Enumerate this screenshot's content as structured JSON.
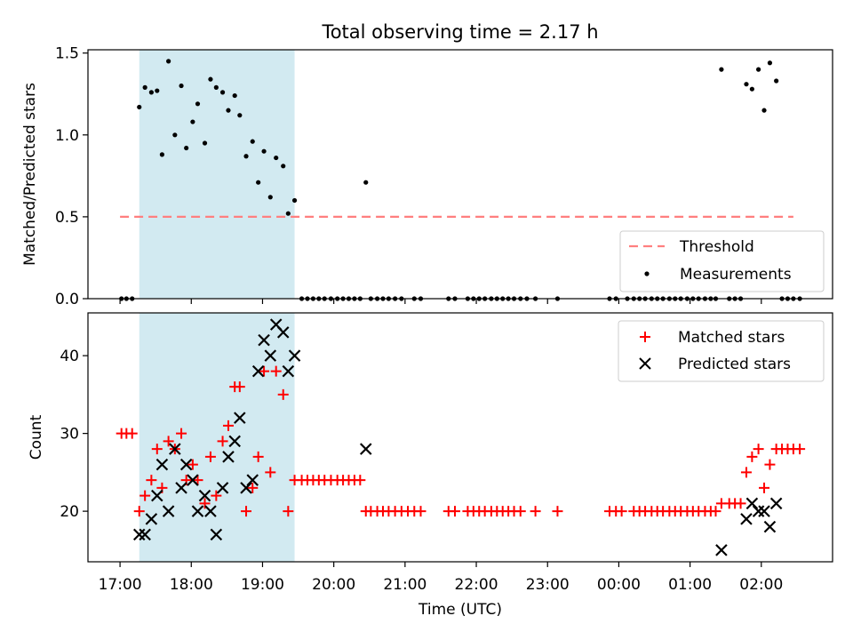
{
  "figure": {
    "title": "Total observing time = 2.17 h",
    "xlabel": "Time (UTC)",
    "x_ticks": [
      "17:00",
      "18:00",
      "19:00",
      "20:00",
      "21:00",
      "22:00",
      "23:00",
      "00:00",
      "01:00",
      "02:00"
    ],
    "x_tick_hours": [
      17,
      18,
      19,
      20,
      21,
      22,
      23,
      24,
      25,
      26
    ],
    "xlim": [
      16.55,
      27.0
    ],
    "shaded_interval_hours": [
      17.27,
      19.45
    ],
    "colors": {
      "shade": "#add8e6",
      "threshold": "#ff7f7f",
      "matched": "#ff0000",
      "predicted": "#000000",
      "measurement": "#000000"
    }
  },
  "chart_data": [
    {
      "type": "scatter",
      "ylabel": "Matched/Predicted stars",
      "ylim": [
        0,
        1.52
      ],
      "y_ticks": [
        "0.0",
        "0.5",
        "1.0",
        "1.5"
      ],
      "y_tick_values": [
        0,
        0.5,
        1.0,
        1.5
      ],
      "threshold": {
        "name": "Threshold",
        "value": 0.5,
        "x_range": [
          17.0,
          26.45
        ]
      },
      "legend": {
        "placement": "lower right",
        "entries": [
          "Threshold",
          "Measurements"
        ]
      },
      "series": [
        {
          "name": "Measurements",
          "points": [
            [
              17.02,
              0
            ],
            [
              17.09,
              0
            ],
            [
              17.17,
              0
            ],
            [
              17.27,
              1.17
            ],
            [
              17.35,
              1.29
            ],
            [
              17.44,
              1.26
            ],
            [
              17.52,
              1.27
            ],
            [
              17.59,
              0.88
            ],
            [
              17.68,
              1.45
            ],
            [
              17.77,
              1.0
            ],
            [
              17.86,
              1.3
            ],
            [
              17.93,
              0.92
            ],
            [
              18.02,
              1.08
            ],
            [
              18.09,
              1.19
            ],
            [
              18.19,
              0.95
            ],
            [
              18.27,
              1.34
            ],
            [
              18.35,
              1.29
            ],
            [
              18.44,
              1.26
            ],
            [
              18.52,
              1.15
            ],
            [
              18.61,
              1.24
            ],
            [
              18.68,
              1.12
            ],
            [
              18.77,
              0.87
            ],
            [
              18.86,
              0.96
            ],
            [
              18.94,
              0.71
            ],
            [
              19.02,
              0.9
            ],
            [
              19.11,
              0.62
            ],
            [
              19.19,
              0.86
            ],
            [
              19.29,
              0.81
            ],
            [
              19.36,
              0.52
            ],
            [
              19.45,
              0.6
            ],
            [
              19.55,
              0
            ],
            [
              19.63,
              0
            ],
            [
              19.71,
              0
            ],
            [
              19.79,
              0
            ],
            [
              19.87,
              0
            ],
            [
              19.96,
              0
            ],
            [
              20.05,
              0
            ],
            [
              20.13,
              0
            ],
            [
              20.21,
              0
            ],
            [
              20.29,
              0
            ],
            [
              20.37,
              0
            ],
            [
              20.45,
              0.71
            ],
            [
              20.52,
              0
            ],
            [
              20.61,
              0
            ],
            [
              20.69,
              0
            ],
            [
              20.77,
              0
            ],
            [
              20.86,
              0
            ],
            [
              20.95,
              0
            ],
            [
              21.13,
              0
            ],
            [
              21.22,
              0
            ],
            [
              21.61,
              0
            ],
            [
              21.7,
              0
            ],
            [
              21.88,
              0
            ],
            [
              21.96,
              0
            ],
            [
              22.04,
              0
            ],
            [
              22.12,
              0
            ],
            [
              22.21,
              0
            ],
            [
              22.29,
              0
            ],
            [
              22.37,
              0
            ],
            [
              22.45,
              0
            ],
            [
              22.53,
              0
            ],
            [
              22.62,
              0
            ],
            [
              22.71,
              0
            ],
            [
              22.83,
              0
            ],
            [
              23.14,
              0
            ],
            [
              23.87,
              0
            ],
            [
              23.96,
              0
            ],
            [
              24.12,
              0
            ],
            [
              24.21,
              0
            ],
            [
              24.29,
              0
            ],
            [
              24.37,
              0
            ],
            [
              24.46,
              0
            ],
            [
              24.54,
              0
            ],
            [
              24.62,
              0
            ],
            [
              24.71,
              0
            ],
            [
              24.79,
              0
            ],
            [
              24.87,
              0
            ],
            [
              24.96,
              0
            ],
            [
              25.04,
              0
            ],
            [
              25.12,
              0
            ],
            [
              25.21,
              0
            ],
            [
              25.29,
              0
            ],
            [
              25.36,
              0
            ],
            [
              25.44,
              1.4
            ],
            [
              25.55,
              0
            ],
            [
              25.63,
              0
            ],
            [
              25.71,
              0
            ],
            [
              25.79,
              1.31
            ],
            [
              25.87,
              1.28
            ],
            [
              25.96,
              1.4
            ],
            [
              26.04,
              1.15
            ],
            [
              26.12,
              1.44
            ],
            [
              26.21,
              1.33
            ],
            [
              26.29,
              0
            ],
            [
              26.37,
              0
            ],
            [
              26.45,
              0
            ],
            [
              26.54,
              0
            ]
          ]
        }
      ]
    },
    {
      "type": "scatter",
      "ylabel": "Count",
      "ylim": [
        13.5,
        45.5
      ],
      "y_ticks": [
        "20",
        "30",
        "40"
      ],
      "y_tick_values": [
        20,
        30,
        40
      ],
      "legend": {
        "placement": "upper right",
        "entries": [
          "Matched stars",
          "Predicted stars"
        ]
      },
      "series": [
        {
          "name": "Matched stars",
          "points": [
            [
              17.02,
              30
            ],
            [
              17.09,
              30
            ],
            [
              17.17,
              30
            ],
            [
              17.27,
              20
            ],
            [
              17.35,
              22
            ],
            [
              17.44,
              24
            ],
            [
              17.52,
              28
            ],
            [
              17.59,
              23
            ],
            [
              17.68,
              29
            ],
            [
              17.77,
              28
            ],
            [
              17.86,
              30
            ],
            [
              17.93,
              24
            ],
            [
              18.02,
              26
            ],
            [
              18.09,
              24
            ],
            [
              18.19,
              21
            ],
            [
              18.27,
              27
            ],
            [
              18.35,
              22
            ],
            [
              18.44,
              29
            ],
            [
              18.52,
              31
            ],
            [
              18.61,
              36
            ],
            [
              18.68,
              36
            ],
            [
              18.77,
              20
            ],
            [
              18.86,
              23
            ],
            [
              18.94,
              27
            ],
            [
              19.02,
              38
            ],
            [
              19.11,
              25
            ],
            [
              19.19,
              38
            ],
            [
              19.29,
              35
            ],
            [
              19.36,
              20
            ],
            [
              19.45,
              24
            ],
            [
              19.55,
              24
            ],
            [
              19.63,
              24
            ],
            [
              19.71,
              24
            ],
            [
              19.79,
              24
            ],
            [
              19.87,
              24
            ],
            [
              19.96,
              24
            ],
            [
              20.05,
              24
            ],
            [
              20.13,
              24
            ],
            [
              20.21,
              24
            ],
            [
              20.29,
              24
            ],
            [
              20.37,
              24
            ],
            [
              20.45,
              20
            ],
            [
              20.52,
              20
            ],
            [
              20.61,
              20
            ],
            [
              20.69,
              20
            ],
            [
              20.77,
              20
            ],
            [
              20.86,
              20
            ],
            [
              20.95,
              20
            ],
            [
              21.04,
              20
            ],
            [
              21.13,
              20
            ],
            [
              21.22,
              20
            ],
            [
              21.61,
              20
            ],
            [
              21.7,
              20
            ],
            [
              21.88,
              20
            ],
            [
              21.96,
              20
            ],
            [
              22.04,
              20
            ],
            [
              22.12,
              20
            ],
            [
              22.21,
              20
            ],
            [
              22.29,
              20
            ],
            [
              22.37,
              20
            ],
            [
              22.45,
              20
            ],
            [
              22.53,
              20
            ],
            [
              22.62,
              20
            ],
            [
              22.83,
              20
            ],
            [
              23.14,
              20
            ],
            [
              23.87,
              20
            ],
            [
              23.96,
              20
            ],
            [
              24.04,
              20
            ],
            [
              24.21,
              20
            ],
            [
              24.29,
              20
            ],
            [
              24.37,
              20
            ],
            [
              24.46,
              20
            ],
            [
              24.54,
              20
            ],
            [
              24.62,
              20
            ],
            [
              24.71,
              20
            ],
            [
              24.79,
              20
            ],
            [
              24.87,
              20
            ],
            [
              24.96,
              20
            ],
            [
              25.04,
              20
            ],
            [
              25.12,
              20
            ],
            [
              25.21,
              20
            ],
            [
              25.29,
              20
            ],
            [
              25.36,
              20
            ],
            [
              25.44,
              21
            ],
            [
              25.55,
              21
            ],
            [
              25.63,
              21
            ],
            [
              25.71,
              21
            ],
            [
              25.79,
              25
            ],
            [
              25.87,
              27
            ],
            [
              25.96,
              28
            ],
            [
              26.04,
              23
            ],
            [
              26.12,
              26
            ],
            [
              26.21,
              28
            ],
            [
              26.29,
              28
            ],
            [
              26.37,
              28
            ],
            [
              26.45,
              28
            ],
            [
              26.54,
              28
            ]
          ]
        },
        {
          "name": "Predicted stars",
          "points": [
            [
              17.27,
              17
            ],
            [
              17.35,
              17
            ],
            [
              17.44,
              19
            ],
            [
              17.52,
              22
            ],
            [
              17.59,
              26
            ],
            [
              17.68,
              20
            ],
            [
              17.77,
              28
            ],
            [
              17.86,
              23
            ],
            [
              17.93,
              26
            ],
            [
              18.02,
              24
            ],
            [
              18.09,
              20
            ],
            [
              18.19,
              22
            ],
            [
              18.27,
              20
            ],
            [
              18.35,
              17
            ],
            [
              18.44,
              23
            ],
            [
              18.52,
              27
            ],
            [
              18.61,
              29
            ],
            [
              18.68,
              32
            ],
            [
              18.77,
              23
            ],
            [
              18.86,
              24
            ],
            [
              18.94,
              38
            ],
            [
              19.02,
              42
            ],
            [
              19.11,
              40
            ],
            [
              19.19,
              44
            ],
            [
              19.29,
              43
            ],
            [
              19.36,
              38
            ],
            [
              19.45,
              40
            ],
            [
              20.45,
              28
            ],
            [
              25.44,
              15
            ],
            [
              25.79,
              19
            ],
            [
              25.87,
              21
            ],
            [
              25.96,
              20
            ],
            [
              26.04,
              20
            ],
            [
              26.12,
              18
            ],
            [
              26.21,
              21
            ]
          ]
        }
      ]
    }
  ]
}
